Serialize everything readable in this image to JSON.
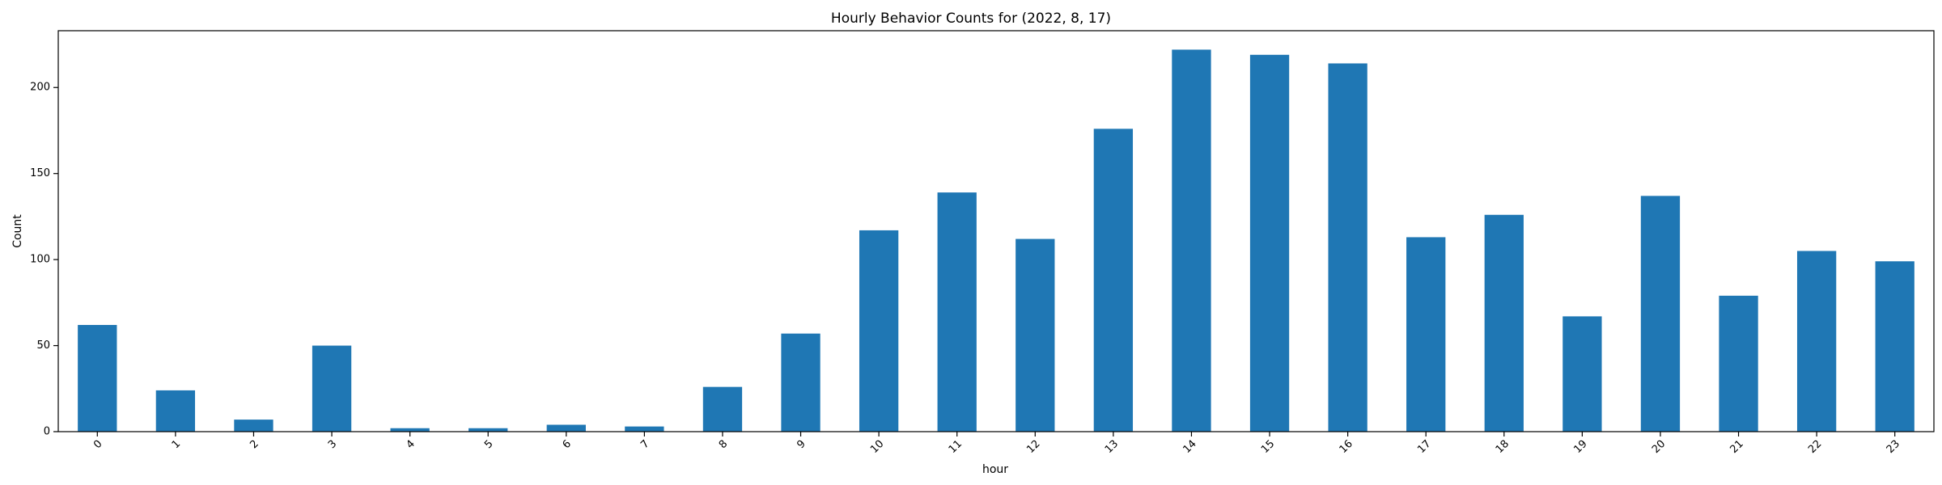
{
  "chart_data": {
    "type": "bar",
    "title": "Hourly Behavior Counts for (2022, 8, 17)",
    "xlabel": "hour",
    "ylabel": "Count",
    "categories": [
      "0",
      "1",
      "2",
      "3",
      "4",
      "5",
      "6",
      "7",
      "8",
      "9",
      "10",
      "11",
      "12",
      "13",
      "14",
      "15",
      "16",
      "17",
      "18",
      "19",
      "20",
      "21",
      "22",
      "23"
    ],
    "values": [
      62,
      24,
      7,
      50,
      2,
      2,
      4,
      3,
      26,
      57,
      117,
      139,
      112,
      176,
      222,
      219,
      214,
      113,
      126,
      67,
      137,
      79,
      105,
      99
    ],
    "ylim": [
      0,
      233
    ],
    "yticks": [
      0,
      50,
      100,
      150,
      200
    ],
    "bar_color": "#1f77b4",
    "grid": false,
    "legend": "none"
  }
}
